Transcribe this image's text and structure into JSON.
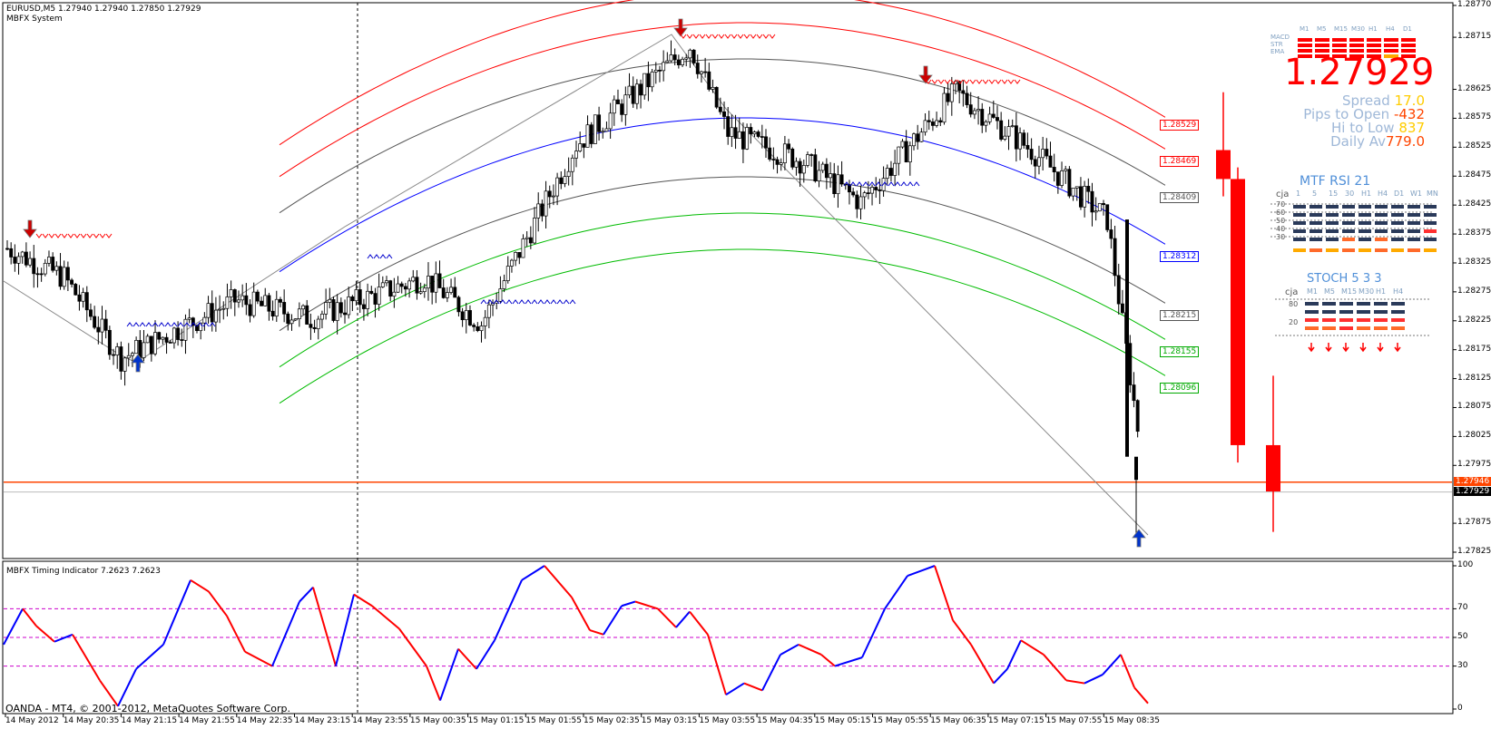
{
  "chart_header": {
    "symbol_line": "EURUSD,M5  1.27940 1.27940 1.27850 1.27929",
    "system_name": "MBFX System"
  },
  "sub_window": {
    "title": "MBFX Timing Indicator 7.2623 7.2623",
    "levels": [
      "100",
      "70",
      "50",
      "30",
      "0"
    ]
  },
  "copyright": "OANDA - MT4, © 2001-2012, MetaQuotes Software Corp.",
  "price_axis": [
    "1.28770",
    "1.28715",
    "1.28625",
    "1.28575",
    "1.28525",
    "1.28475",
    "1.28425",
    "1.28375",
    "1.28325",
    "1.28275",
    "1.28225",
    "1.28175",
    "1.28125",
    "1.28075",
    "1.28025",
    "1.27975",
    "1.27875",
    "1.27825"
  ],
  "price_tags": [
    {
      "text": "1.27946",
      "kind": "bid"
    },
    {
      "text": "1.27929",
      "kind": "current"
    }
  ],
  "time_axis": [
    "14 May 2012",
    "14 May 20:35",
    "14 May 21:15",
    "14 May 21:55",
    "14 May 22:35",
    "14 May 23:15",
    "14 May 23:55",
    "15 May 00:35",
    "15 May 01:15",
    "15 May 01:55",
    "15 May 02:35",
    "15 May 03:15",
    "15 May 03:55",
    "15 May 04:35",
    "15 May 05:15",
    "15 May 05:55",
    "15 May 06:35",
    "15 May 07:15",
    "15 May 07:55",
    "15 May 08:35"
  ],
  "level_labels": [
    {
      "text": "1.28529",
      "color": "#ff0000"
    },
    {
      "text": "1.28469",
      "color": "#ff0000"
    },
    {
      "text": "1.28409",
      "color": "#555555"
    },
    {
      "text": "1.28312",
      "color": "#0000ff"
    },
    {
      "text": "1.28215",
      "color": "#555555"
    },
    {
      "text": "1.28155",
      "color": "#00aa00"
    },
    {
      "text": "1.28096",
      "color": "#00aa00"
    }
  ],
  "panel": {
    "timeframes": [
      "M1",
      "M5",
      "M15",
      "M30",
      "H1",
      "H4",
      "D1"
    ],
    "row_labels": [
      "MACD",
      "STR",
      "EMA"
    ],
    "price": "1.27929",
    "spread_label": "Spread",
    "spread_value": "17.0",
    "pips_label": "Pips to Open",
    "pips_value": "-432",
    "hilo_label": "Hi to Low",
    "hilo_value": "837",
    "daily_label": "Daily Av",
    "daily_value": "779.0"
  },
  "mtf_rsi": {
    "title": "MTF RSI  21",
    "user": "cja",
    "timeframes": [
      "1",
      "5",
      "15",
      "30",
      "H1",
      "H4",
      "D1",
      "W1",
      "MN"
    ],
    "levels": [
      "70",
      "60",
      "50",
      "40",
      "30"
    ]
  },
  "stoch": {
    "title": "STOCH  5 3 3",
    "user": "cja",
    "timeframes": [
      "M1",
      "M5",
      "M15",
      "M30",
      "H1",
      "H4"
    ],
    "levels": [
      "80",
      "20"
    ]
  },
  "colors": {
    "bear": "#000000",
    "bull": "#ffffff",
    "red_band": "#ff0000",
    "green_band": "#00bb00",
    "center_band": "#0000ff",
    "grey_band": "#555555",
    "bid_line": "#ff4500",
    "timing_up": "#0000ff",
    "timing_down": "#ff0000",
    "timing_turn": "#ffa500",
    "level_line": "#cc00cc"
  }
}
